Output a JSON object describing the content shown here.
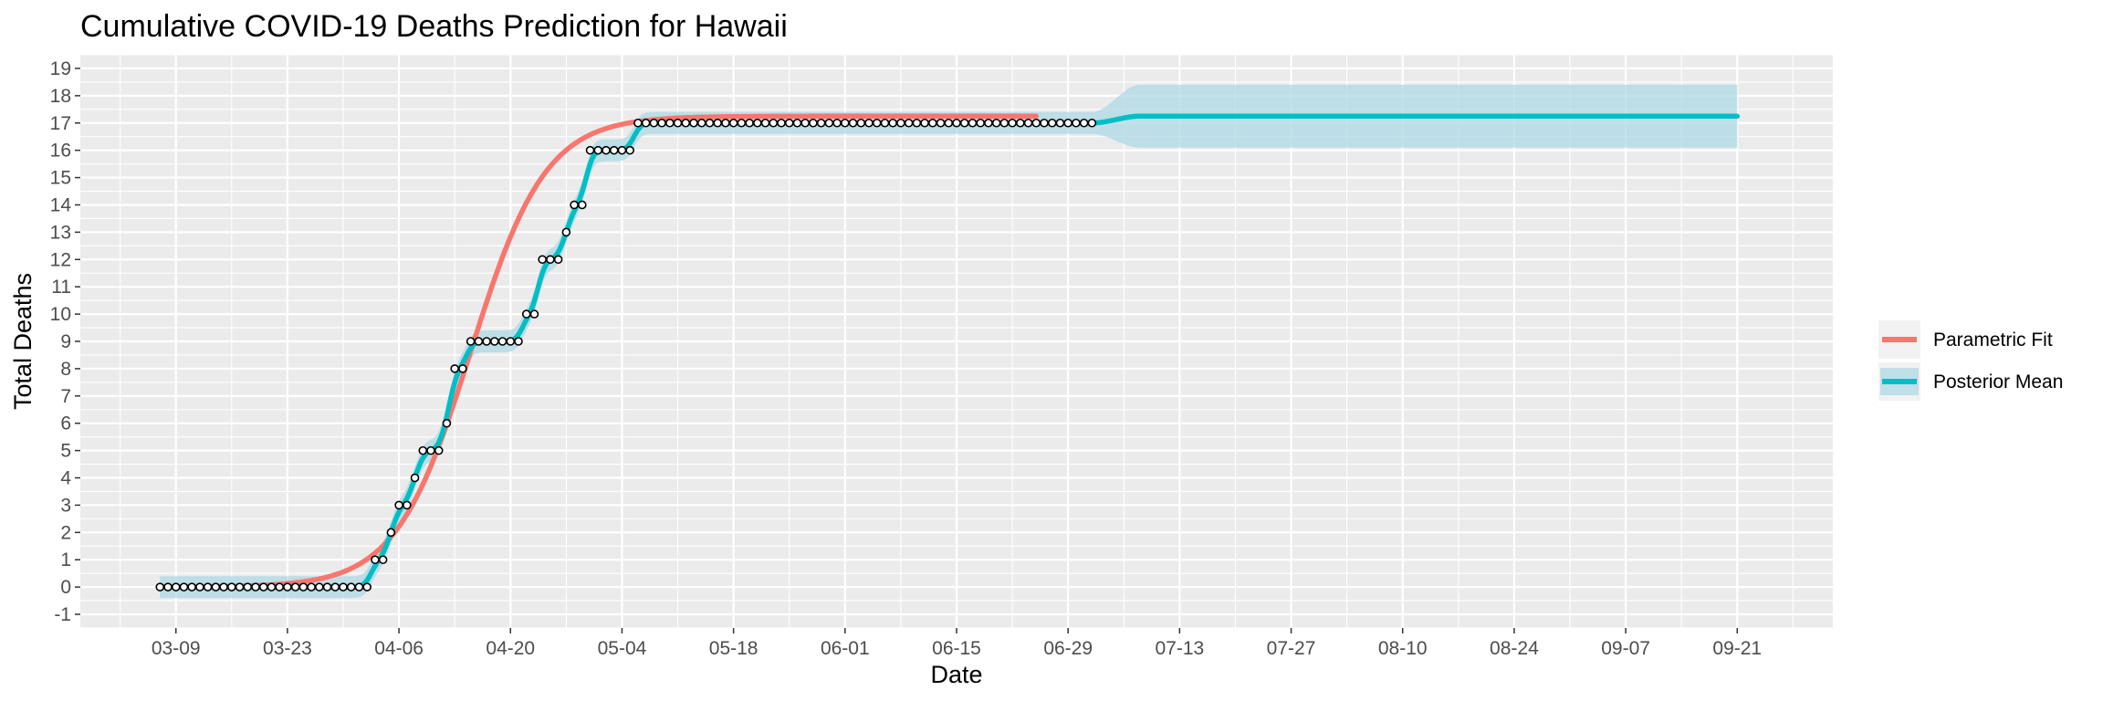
{
  "chart_data": {
    "type": "line",
    "title": "Cumulative COVID-19 Deaths Prediction for Hawaii",
    "xlabel": "Date",
    "ylabel": "Total Deaths",
    "x_ticks": [
      "03-09",
      "03-23",
      "04-06",
      "04-20",
      "05-04",
      "05-18",
      "06-01",
      "06-15",
      "06-29",
      "07-13",
      "07-27",
      "08-10",
      "08-24",
      "09-07",
      "09-21"
    ],
    "y_ticks": [
      "-1",
      "0",
      "1",
      "2",
      "3",
      "4",
      "5",
      "6",
      "7",
      "8",
      "9",
      "10",
      "11",
      "12",
      "13",
      "14",
      "15",
      "16",
      "17",
      "18",
      "19"
    ],
    "ylim": [
      -1.5,
      19.5
    ],
    "xlim": [
      "2020-02-26",
      "2020-10-03"
    ],
    "grid": true,
    "legend_position": "right",
    "legend": [
      {
        "label": "Parametric Fit",
        "color": "#F8766D"
      },
      {
        "label": "Posterior Mean",
        "color": "#00BFC4"
      }
    ],
    "colors": {
      "panel": "#EBEBEB",
      "grid": "#FFFFFF",
      "parametric": "#F8766D",
      "posterior": "#00BFC4",
      "band": "#ADD8E6"
    },
    "observed": {
      "start_date": "2020-03-07",
      "values": [
        0,
        0,
        0,
        0,
        0,
        0,
        0,
        0,
        0,
        0,
        0,
        0,
        0,
        0,
        0,
        0,
        0,
        0,
        0,
        0,
        0,
        0,
        0,
        0,
        0,
        0,
        0,
        1,
        1,
        2,
        3,
        3,
        4,
        5,
        5,
        5,
        6,
        8,
        8,
        9,
        9,
        9,
        9,
        9,
        9,
        9,
        10,
        10,
        12,
        12,
        12,
        13,
        14,
        14,
        16,
        16,
        16,
        16,
        16,
        16,
        17,
        17,
        17,
        17,
        17,
        17,
        17,
        17,
        17,
        17,
        17,
        17,
        17,
        17,
        17,
        17,
        17,
        17,
        17,
        17,
        17,
        17,
        17,
        17,
        17,
        17,
        17,
        17,
        17,
        17,
        17,
        17,
        17,
        17,
        17,
        17,
        17,
        17,
        17,
        17,
        17,
        17,
        17,
        17,
        17,
        17,
        17,
        17,
        17,
        17,
        17,
        17,
        17,
        17,
        17,
        17,
        17,
        17
      ]
    },
    "series": [
      {
        "name": "Parametric Fit",
        "model": "logistic",
        "asymptote": 17.25,
        "midpoint": "2020-04-15",
        "scale_days": 4.7,
        "x_end": "2020-06-25"
      },
      {
        "name": "Posterior Mean",
        "x_end": "2020-09-21",
        "forecast_value": 17.25,
        "band_half_width_observed": 0.4,
        "band_half_width_forecast": 1.15
      }
    ]
  }
}
